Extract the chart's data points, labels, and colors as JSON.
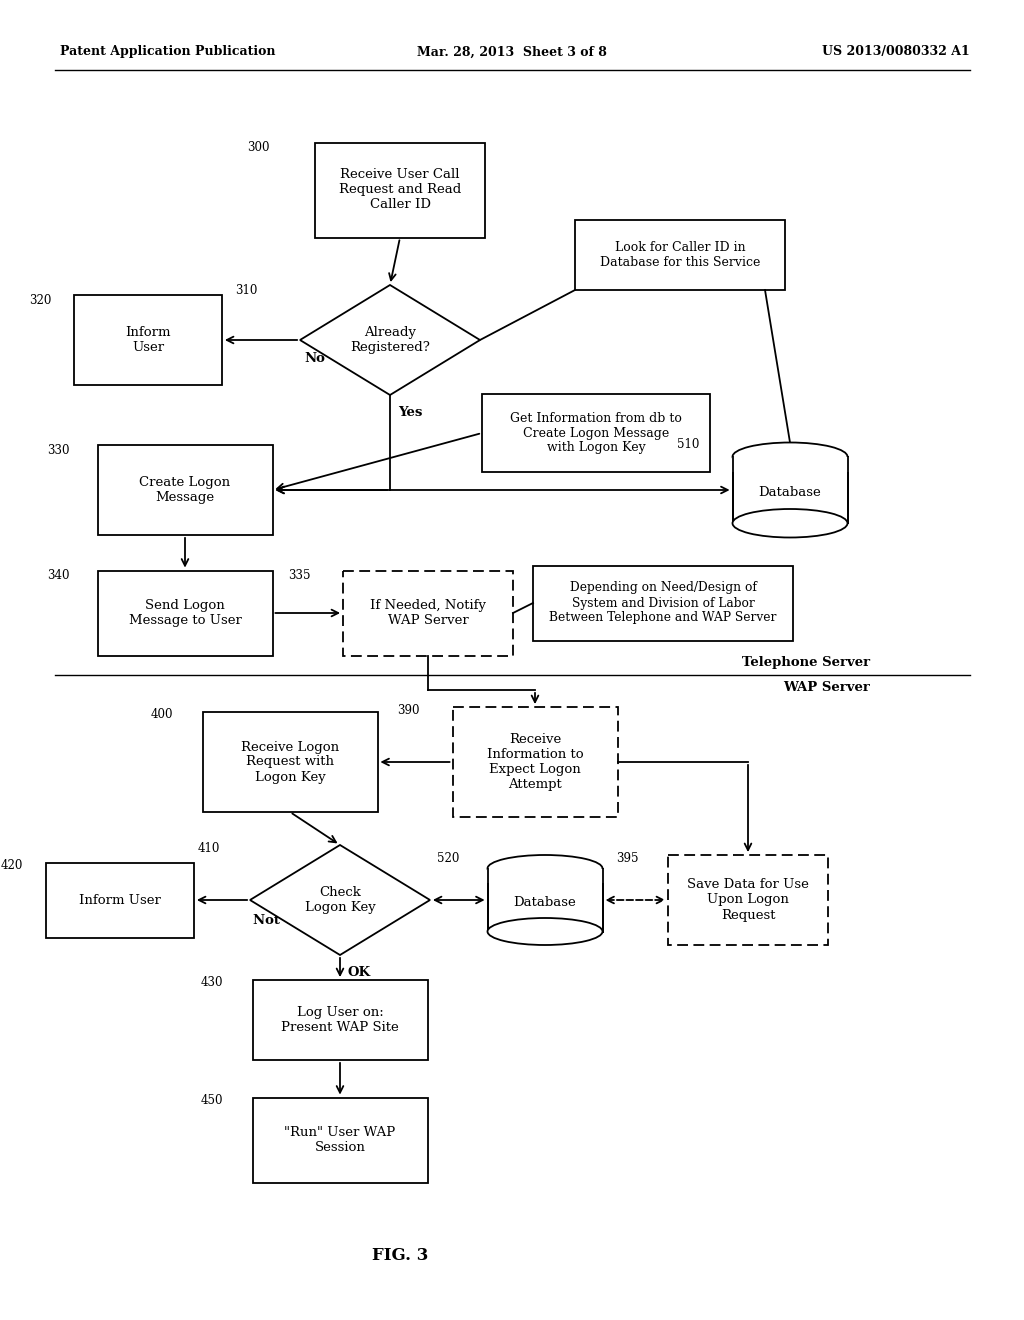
{
  "bg_color": "#ffffff",
  "header_left": "Patent Application Publication",
  "header_mid": "Mar. 28, 2013  Sheet 3 of 8",
  "header_right": "US 2013/0080332 A1",
  "fig_label": "FIG. 3",
  "line_color": "#000000",
  "lw": 1.3
}
